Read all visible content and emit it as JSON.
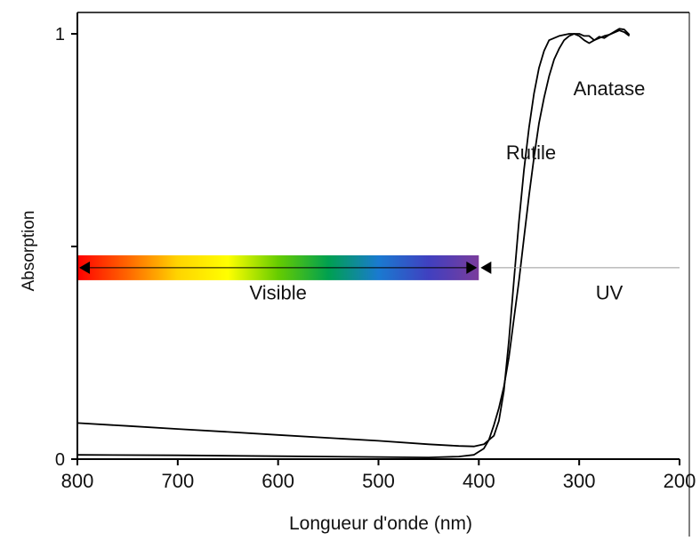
{
  "chart_data": {
    "type": "line",
    "title": "",
    "xlabel": "Longueur d'onde (nm)",
    "ylabel": "Absorption",
    "x_reversed": true,
    "xlim": [
      800,
      200
    ],
    "ylim": [
      0,
      1
    ],
    "x_ticks": [
      800,
      700,
      600,
      500,
      400,
      300,
      200
    ],
    "y_ticks": [
      0,
      0.5,
      1
    ],
    "y_tick_labels": [
      "0",
      "",
      "1"
    ],
    "grid": false,
    "series": [
      {
        "name": "Rutile",
        "points": [
          [
            800,
            0.085
          ],
          [
            750,
            0.078
          ],
          [
            700,
            0.071
          ],
          [
            650,
            0.064
          ],
          [
            600,
            0.057
          ],
          [
            550,
            0.05
          ],
          [
            500,
            0.043
          ],
          [
            450,
            0.035
          ],
          [
            420,
            0.031
          ],
          [
            405,
            0.03
          ],
          [
            395,
            0.035
          ],
          [
            385,
            0.055
          ],
          [
            380,
            0.09
          ],
          [
            375,
            0.16
          ],
          [
            370,
            0.28
          ],
          [
            365,
            0.42
          ],
          [
            360,
            0.56
          ],
          [
            355,
            0.68
          ],
          [
            350,
            0.78
          ],
          [
            345,
            0.86
          ],
          [
            340,
            0.92
          ],
          [
            335,
            0.96
          ],
          [
            330,
            0.985
          ],
          [
            320,
            0.995
          ],
          [
            310,
            1.0
          ],
          [
            300,
            1.0
          ],
          [
            295,
            0.995
          ],
          [
            290,
            0.995
          ],
          [
            285,
            0.985
          ],
          [
            280,
            0.99
          ],
          [
            275,
            0.995
          ],
          [
            270,
            0.998
          ],
          [
            265,
            1.005
          ],
          [
            260,
            1.012
          ],
          [
            255,
            1.01
          ],
          [
            250,
            0.998
          ]
        ]
      },
      {
        "name": "Anatase",
        "points": [
          [
            800,
            0.01
          ],
          [
            700,
            0.009
          ],
          [
            600,
            0.007
          ],
          [
            500,
            0.005
          ],
          [
            450,
            0.004
          ],
          [
            420,
            0.006
          ],
          [
            405,
            0.01
          ],
          [
            395,
            0.025
          ],
          [
            390,
            0.045
          ],
          [
            385,
            0.08
          ],
          [
            380,
            0.12
          ],
          [
            375,
            0.17
          ],
          [
            370,
            0.24
          ],
          [
            365,
            0.33
          ],
          [
            360,
            0.42
          ],
          [
            355,
            0.52
          ],
          [
            350,
            0.62
          ],
          [
            345,
            0.71
          ],
          [
            340,
            0.79
          ],
          [
            335,
            0.85
          ],
          [
            330,
            0.9
          ],
          [
            325,
            0.94
          ],
          [
            320,
            0.965
          ],
          [
            315,
            0.985
          ],
          [
            310,
            0.995
          ],
          [
            305,
            1.0
          ],
          [
            300,
            0.995
          ],
          [
            295,
            0.985
          ],
          [
            290,
            0.978
          ],
          [
            285,
            0.985
          ],
          [
            280,
            0.993
          ],
          [
            275,
            0.99
          ],
          [
            270,
            0.998
          ],
          [
            265,
            1.003
          ],
          [
            260,
            1.008
          ],
          [
            255,
            1.004
          ],
          [
            250,
            0.995
          ]
        ]
      }
    ],
    "annotations": [
      {
        "text": "Anatase",
        "x": 270,
        "y": 0.87
      },
      {
        "text": "Rutile",
        "x": 348,
        "y": 0.72
      },
      {
        "text": "Visible",
        "x": 600,
        "y": 0.39
      },
      {
        "text": "UV",
        "x": 270,
        "y": 0.39
      }
    ],
    "spectrum_band": {
      "x_range": [
        800,
        400
      ],
      "y": 0.45,
      "colors": [
        "#ff0000",
        "#ff6600",
        "#ffd400",
        "#ffff00",
        "#66cc00",
        "#00a050",
        "#1a7ad0",
        "#4040c0",
        "#7a3c9c"
      ]
    },
    "uv_arrow": {
      "x_range": [
        400,
        250
      ],
      "y": 0.45
    }
  }
}
